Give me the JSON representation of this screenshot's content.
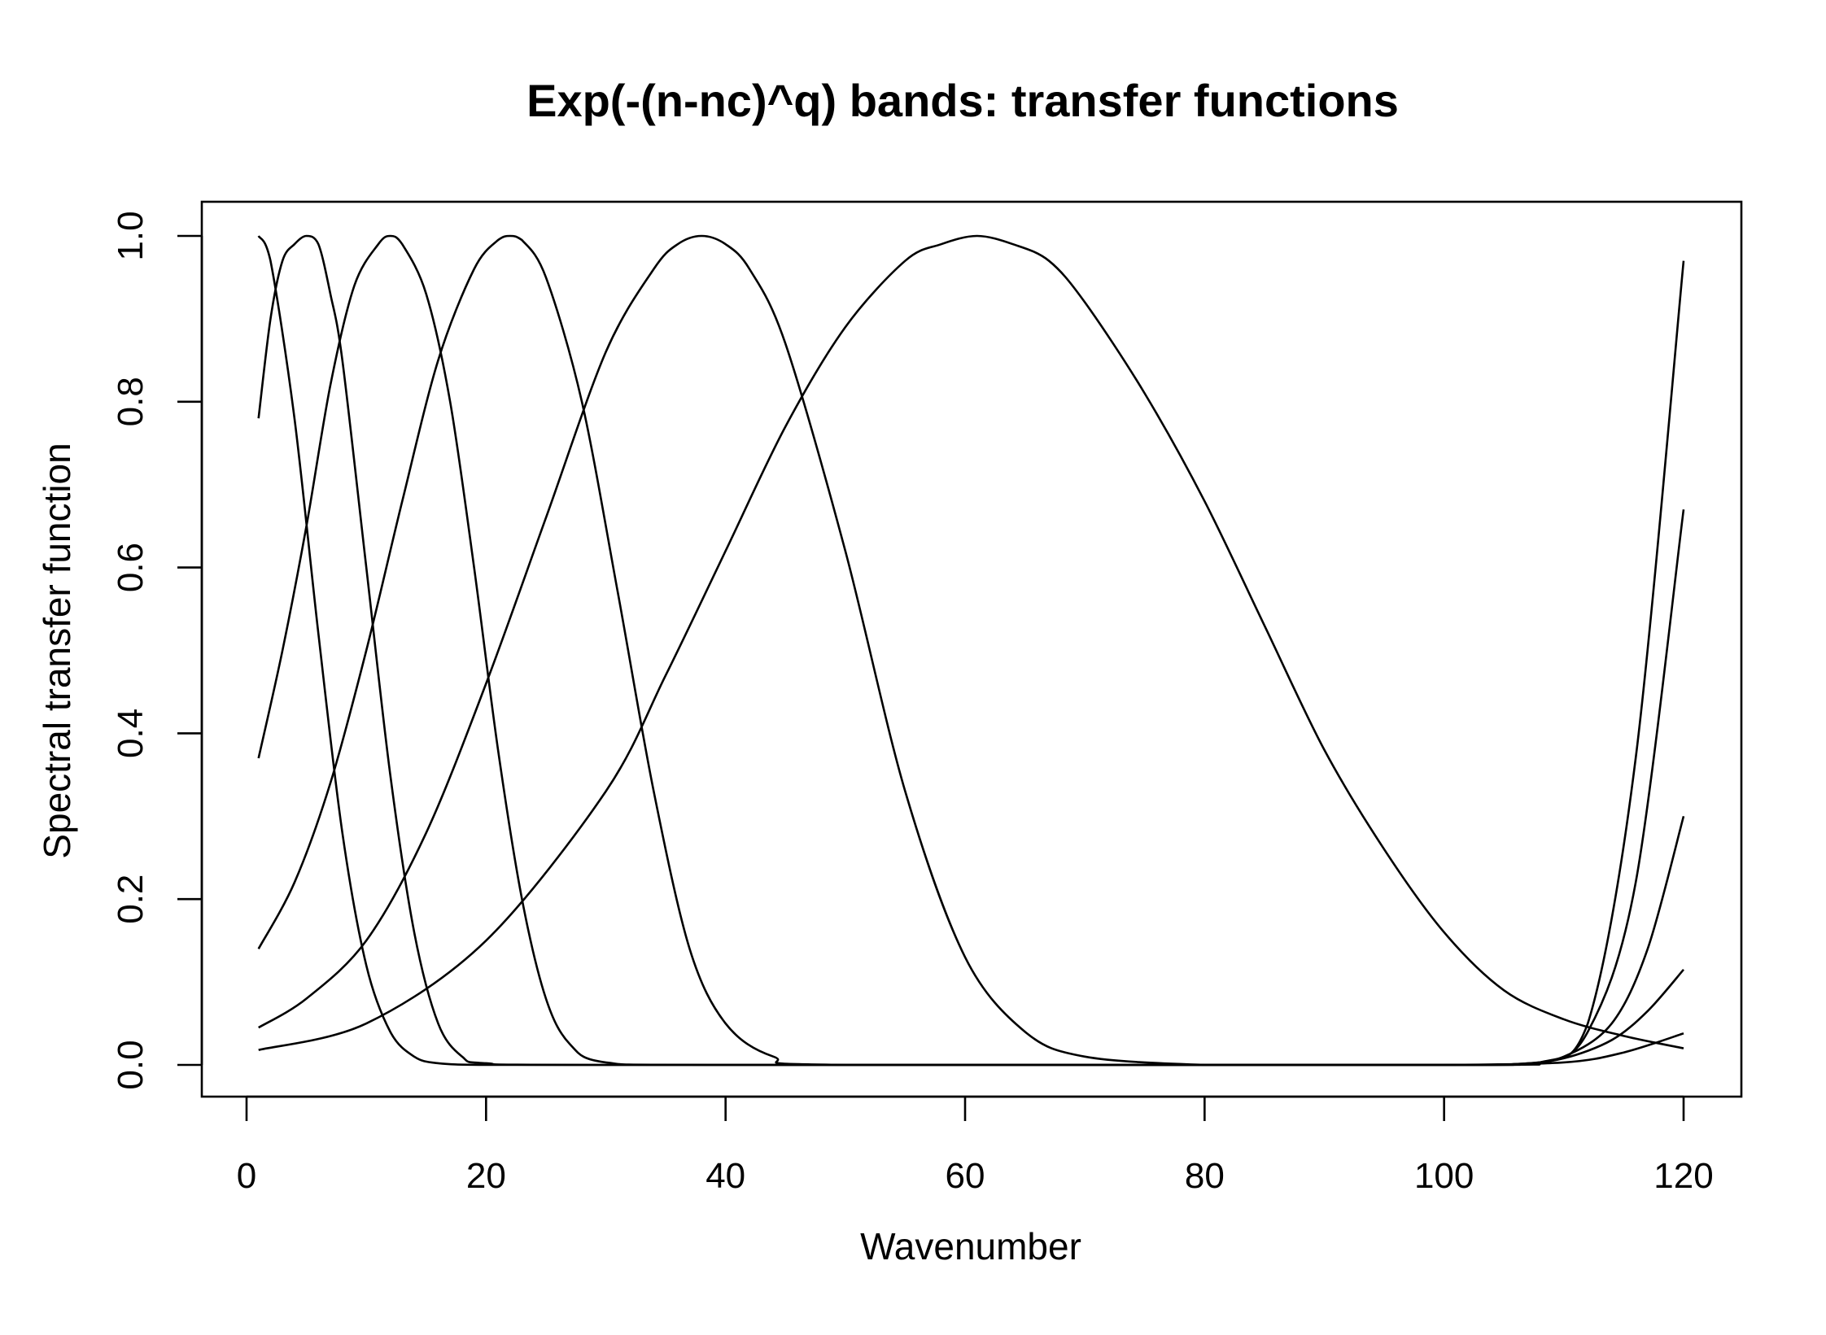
{
  "chart_data": {
    "type": "line",
    "title": "Exp(-(n-nc)^q)  bands: transfer functions",
    "xlabel": "Wavenumber",
    "ylabel": "Spectral transfer function",
    "xlim": [
      1,
      120
    ],
    "ylim": [
      0,
      1
    ],
    "x_ticks": [
      0,
      20,
      40,
      60,
      80,
      100,
      120
    ],
    "x_tick_labels": [
      "0",
      "20",
      "40",
      "60",
      "80",
      "100",
      "120"
    ],
    "y_ticks": [
      0,
      0.2,
      0.4,
      0.6,
      0.8,
      1
    ],
    "y_tick_labels": [
      "0.0",
      "0.2",
      "0.4",
      "0.6",
      "0.8",
      "1.0"
    ],
    "grid": false,
    "legend": "none",
    "line_color": "#000000",
    "series": [
      {
        "x": [
          1,
          2,
          4,
          6,
          8,
          10,
          12,
          14,
          16,
          20,
          30,
          60,
          100,
          108,
          112,
          116,
          120
        ],
        "values": [
          1.0,
          0.97,
          0.78,
          0.52,
          0.28,
          0.12,
          0.04,
          0.01,
          0.002,
          0.0,
          0.0,
          0.0,
          0.0,
          0.002,
          0.05,
          0.37,
          0.97
        ]
      },
      {
        "x": [
          1,
          2,
          3,
          4,
          5,
          6,
          7,
          8,
          10,
          12,
          14,
          16,
          18,
          20,
          30,
          100,
          108,
          112,
          116,
          120
        ],
        "values": [
          0.78,
          0.9,
          0.97,
          0.99,
          1.0,
          0.99,
          0.93,
          0.85,
          0.6,
          0.35,
          0.16,
          0.05,
          0.01,
          0.002,
          0.0,
          0.0,
          0.003,
          0.04,
          0.22,
          0.67
        ]
      },
      {
        "x": [
          1,
          3,
          5,
          7,
          9,
          11,
          12,
          13,
          15,
          17,
          19,
          21,
          23,
          25,
          27,
          30,
          40,
          100,
          106,
          110,
          114,
          117,
          120
        ],
        "values": [
          0.37,
          0.5,
          0.65,
          0.82,
          0.94,
          0.99,
          1.0,
          0.99,
          0.93,
          0.8,
          0.6,
          0.38,
          0.2,
          0.08,
          0.025,
          0.003,
          0.0,
          0.0,
          0.001,
          0.01,
          0.05,
          0.14,
          0.3
        ]
      },
      {
        "x": [
          1,
          4,
          7,
          10,
          13,
          16,
          19,
          21,
          22,
          23,
          25,
          28,
          31,
          34,
          37,
          40,
          44,
          50,
          100,
          106,
          110,
          114,
          117,
          120
        ],
        "values": [
          0.14,
          0.22,
          0.34,
          0.5,
          0.68,
          0.85,
          0.96,
          0.995,
          1.0,
          0.995,
          0.95,
          0.8,
          0.57,
          0.33,
          0.14,
          0.05,
          0.01,
          0.0,
          0.0,
          0.001,
          0.008,
          0.03,
          0.065,
          0.115
        ]
      },
      {
        "x": [
          1,
          5,
          10,
          15,
          20,
          25,
          30,
          34,
          36,
          38,
          40,
          42,
          45,
          50,
          55,
          60,
          65,
          70,
          80,
          90,
          100,
          110,
          115,
          120
        ],
        "values": [
          0.045,
          0.08,
          0.15,
          0.28,
          0.46,
          0.66,
          0.86,
          0.96,
          0.99,
          1.0,
          0.99,
          0.96,
          0.87,
          0.62,
          0.33,
          0.13,
          0.04,
          0.01,
          0.0,
          0.0,
          0.0,
          0.003,
          0.015,
          0.038
        ]
      },
      {
        "x": [
          1,
          10,
          20,
          30,
          35,
          40,
          45,
          50,
          55,
          58,
          61,
          64,
          67,
          70,
          75,
          80,
          85,
          90,
          95,
          100,
          105,
          110,
          115,
          120
        ],
        "values": [
          0.018,
          0.05,
          0.15,
          0.33,
          0.47,
          0.62,
          0.77,
          0.89,
          0.97,
          0.99,
          1.0,
          0.99,
          0.97,
          0.92,
          0.81,
          0.68,
          0.53,
          0.38,
          0.26,
          0.16,
          0.09,
          0.055,
          0.035,
          0.02
        ]
      }
    ]
  }
}
